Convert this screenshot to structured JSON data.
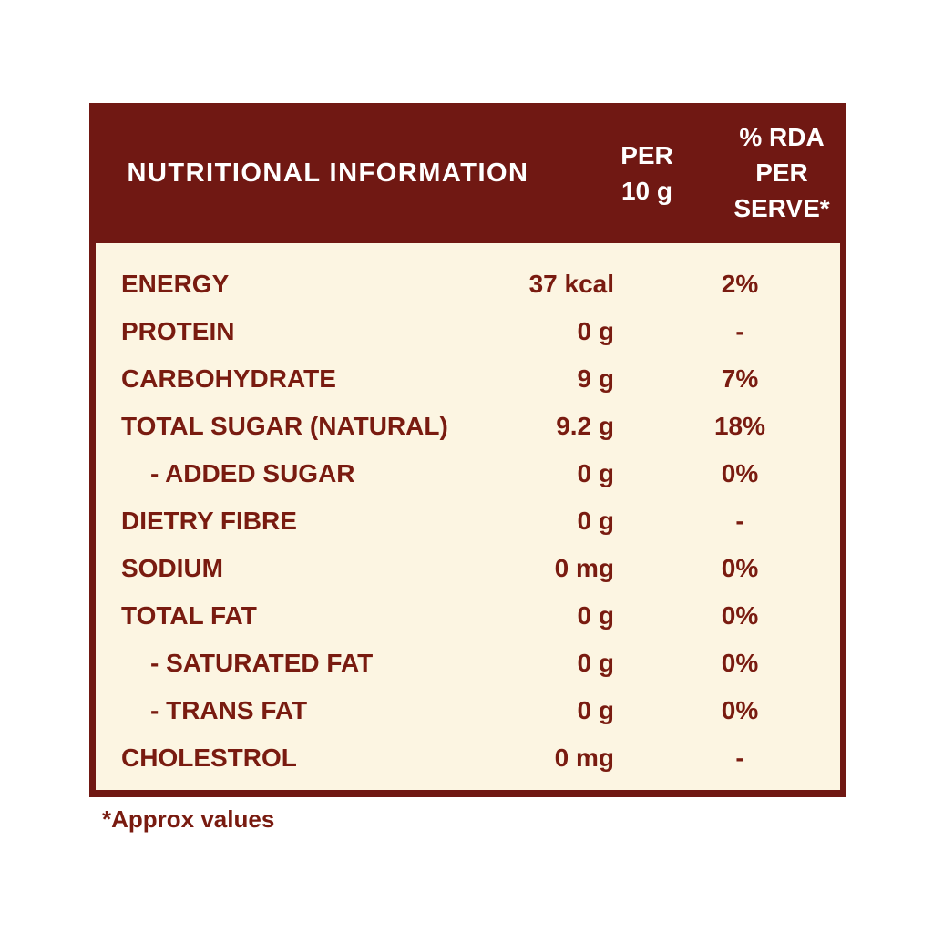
{
  "colors": {
    "maroon_header": "#701813",
    "text_maroon": "#791B10",
    "cream_body": "#FCF5E2",
    "header_text": "#FFFFFF",
    "page_background": "#FFFFFF"
  },
  "header": {
    "title": "NUTRITIONAL INFORMATION",
    "per_col": {
      "line1": "PER",
      "line2": "10 g"
    },
    "rda_col": {
      "line1": "% RDA",
      "line2": "PER",
      "line3": "SERVE*"
    }
  },
  "rows": [
    {
      "label": "ENERGY",
      "value": "37 kcal",
      "rda": "2%"
    },
    {
      "label": "PROTEIN",
      "value": "0 g",
      "rda": "-"
    },
    {
      "label": "CARBOHYDRATE",
      "value": "9 g",
      "rda": "7%"
    },
    {
      "label": "TOTAL SUGAR (NATURAL)",
      "value": "9.2 g",
      "rda": "18%"
    },
    {
      "label": "- ADDED SUGAR",
      "value": "0 g",
      "rda": "0%"
    },
    {
      "label": "DIETRY FIBRE",
      "value": "0 g",
      "rda": "-"
    },
    {
      "label": "SODIUM",
      "value": "0 mg",
      "rda": "0%"
    },
    {
      "label": "TOTAL FAT",
      "value": "0 g",
      "rda": "0%"
    },
    {
      "label": "- SATURATED FAT",
      "value": "0 g",
      "rda": "0%"
    },
    {
      "label": "- TRANS FAT",
      "value": "0 g",
      "rda": "0%"
    },
    {
      "label": "CHOLESTROL",
      "value": "0 mg",
      "rda": "-"
    }
  ],
  "footnote": "*Approx values"
}
